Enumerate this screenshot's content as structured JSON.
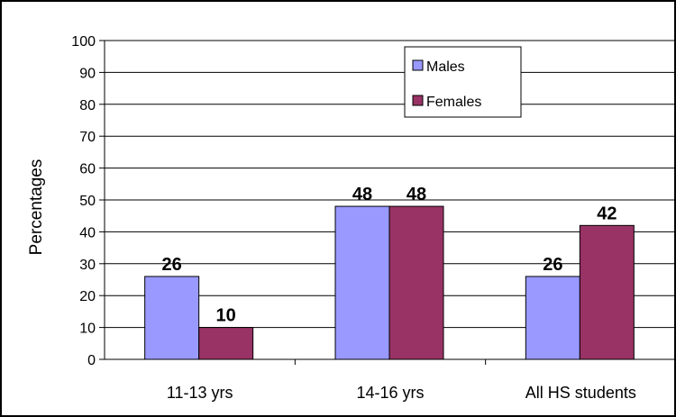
{
  "chart_data": {
    "type": "bar",
    "categories": [
      "11-13 yrs",
      "14-16 yrs",
      "All HS students"
    ],
    "series": [
      {
        "name": "Males",
        "values": [
          26,
          48,
          26
        ],
        "color": "#9999ff"
      },
      {
        "name": "Females",
        "values": [
          10,
          48,
          42
        ],
        "color": "#993366"
      }
    ],
    "ylabel": "Percentages",
    "xlabel": "",
    "ylim": [
      0,
      100
    ],
    "yticks": [
      0,
      10,
      20,
      30,
      40,
      50,
      60,
      70,
      80,
      90,
      100
    ],
    "grid": true,
    "legend_position": "top-right",
    "data_labels": true
  }
}
